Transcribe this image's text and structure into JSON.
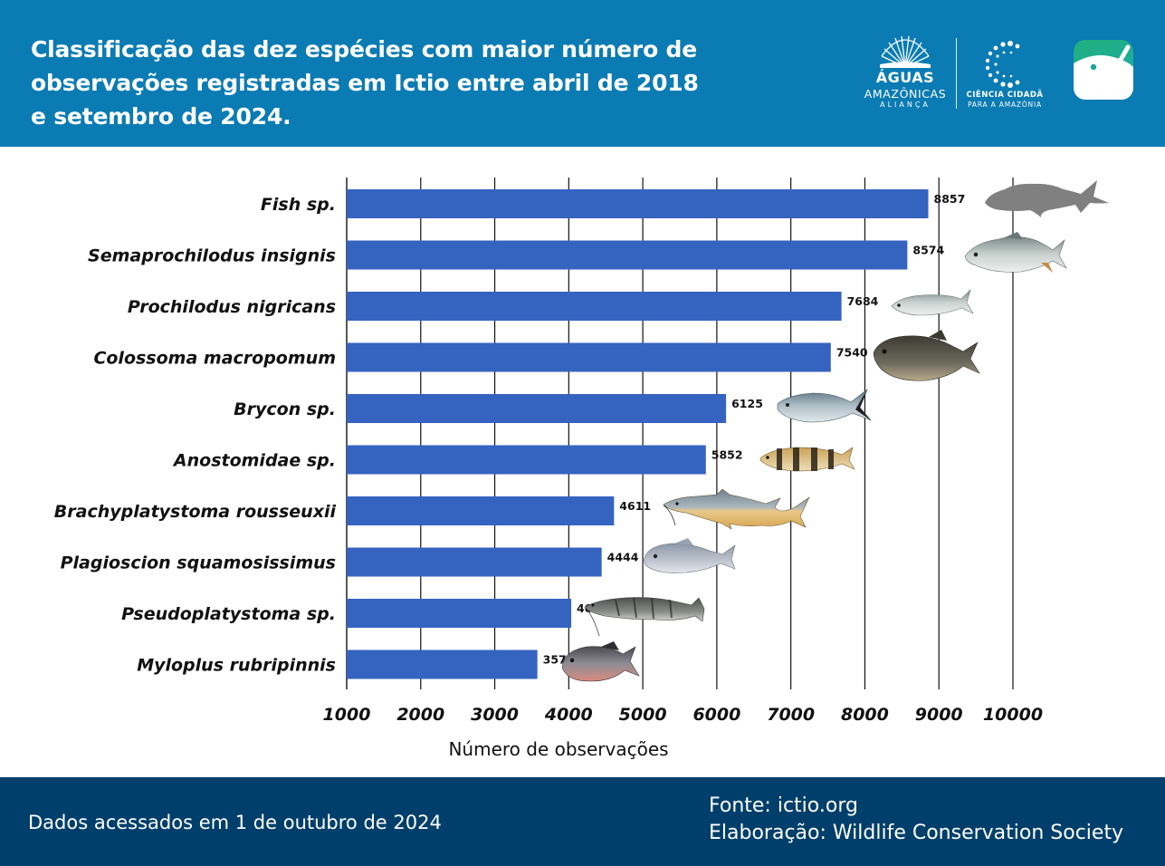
{
  "header": {
    "title": "Classificação das dez espécies com maior número de observações registradas em Ictio entre abril de 2018 e setembro de 2024.",
    "logo_aguas": {
      "line1": "ÁGUAS",
      "line2": "AMAZÔNICAS",
      "line3": "ALIANÇA"
    },
    "logo_cc": {
      "line1": "CIÊNCIA CIDADÃ",
      "line2": "PARA A AMAZÔNIA"
    },
    "colors": {
      "background": "#0b7bb3",
      "text": "#ffffff"
    }
  },
  "chart_data": {
    "type": "bar",
    "orientation": "horizontal",
    "categories": [
      "Fish sp.",
      "Semaprochilodus insignis",
      "Prochilodus nigricans",
      "Colossoma macropomum",
      "Brycon sp.",
      "Anostomidae sp.",
      "Brachyplatystoma rousseuxii",
      "Plagioscion squamosissimus",
      "Pseudoplatystoma sp.",
      "Myloplus rubripinnis"
    ],
    "values": [
      8857,
      8574,
      7684,
      7540,
      6125,
      5852,
      4611,
      4444,
      4033,
      3576
    ],
    "xlim": [
      1000,
      10000
    ],
    "xticks": [
      "1000",
      "2000",
      "3000",
      "4000",
      "5000",
      "6000",
      "7000",
      "8000",
      "9000",
      "10000"
    ],
    "xlabel": "Número de observações",
    "ylabel": "",
    "grid": true,
    "bar_color": "#3563c0",
    "fish_icons": [
      "fish-silhouette-icon",
      "semaprochilodus-icon",
      "prochilodus-icon",
      "tambaqui-icon",
      "brycon-icon",
      "anostomidae-icon",
      "dourada-catfish-icon",
      "corvina-icon",
      "surubim-icon",
      "pacu-icon"
    ]
  },
  "footer": {
    "accessed": "Dados acessados em 1 de outubro de 2024",
    "source": "Fonte: ictio.org",
    "credit": "Elaboração: Wildlife Conservation Society",
    "colors": {
      "background": "#003f6b",
      "text": "#ffffff"
    }
  }
}
